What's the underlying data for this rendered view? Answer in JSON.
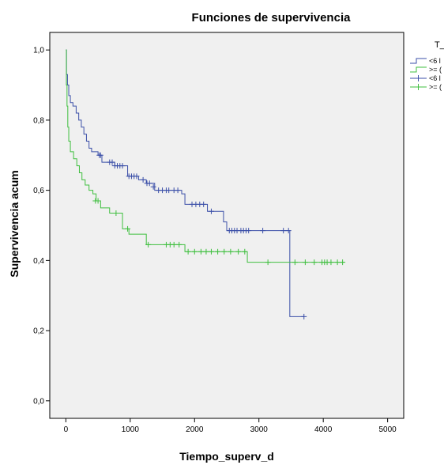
{
  "chart_data": {
    "type": "line",
    "title": "Funciones de supervivencia",
    "xlabel": "Tiempo_superv_d",
    "ylabel": "Supervivencia acum",
    "xlim": [
      -250,
      5250
    ],
    "ylim": [
      -0.05,
      1.05
    ],
    "xticks": [
      0,
      1000,
      2000,
      3000,
      4000,
      5000
    ],
    "xtick_labels": [
      "0",
      "1000",
      "2000",
      "3000",
      "4000",
      "5000"
    ],
    "yticks": [
      0.0,
      0.2,
      0.4,
      0.6,
      0.8,
      1.0
    ],
    "ytick_labels": [
      "0,0",
      "0,2",
      "0,4",
      "0,6",
      "0,8",
      "1,0"
    ],
    "grid": false,
    "background": "#f0f0f0",
    "legend": {
      "title": "T_",
      "position": "right",
      "entries": [
        {
          "label": "<6 l",
          "color": "#3b4fa8",
          "marker": "step"
        },
        {
          "label": ">= (",
          "color": "#3fbf3f",
          "marker": "step"
        },
        {
          "label": "<6 l",
          "color": "#3b4fa8",
          "marker": "plus"
        },
        {
          "label": ">= (",
          "color": "#3fbf3f",
          "marker": "plus"
        }
      ]
    },
    "series": [
      {
        "color": "#3b4fa8",
        "steps": [
          [
            0,
            1.0
          ],
          [
            10,
            0.93
          ],
          [
            25,
            0.9
          ],
          [
            45,
            0.87
          ],
          [
            70,
            0.85
          ],
          [
            110,
            0.84
          ],
          [
            160,
            0.82
          ],
          [
            200,
            0.8
          ],
          [
            240,
            0.78
          ],
          [
            280,
            0.76
          ],
          [
            320,
            0.74
          ],
          [
            360,
            0.72
          ],
          [
            400,
            0.71
          ],
          [
            500,
            0.7
          ],
          [
            560,
            0.68
          ],
          [
            760,
            0.67
          ],
          [
            960,
            0.64
          ],
          [
            1130,
            0.63
          ],
          [
            1250,
            0.62
          ],
          [
            1380,
            0.6
          ],
          [
            1800,
            0.59
          ],
          [
            1850,
            0.56
          ],
          [
            2200,
            0.54
          ],
          [
            2450,
            0.51
          ],
          [
            2500,
            0.485
          ],
          [
            3480,
            0.24
          ],
          [
            3700,
            0.24
          ]
        ],
        "censored": [
          [
            520,
            0.7
          ],
          [
            540,
            0.7
          ],
          [
            680,
            0.68
          ],
          [
            720,
            0.68
          ],
          [
            760,
            0.67
          ],
          [
            800,
            0.67
          ],
          [
            840,
            0.67
          ],
          [
            880,
            0.67
          ],
          [
            980,
            0.64
          ],
          [
            1020,
            0.64
          ],
          [
            1060,
            0.64
          ],
          [
            1100,
            0.64
          ],
          [
            1200,
            0.63
          ],
          [
            1260,
            0.62
          ],
          [
            1300,
            0.62
          ],
          [
            1360,
            0.61
          ],
          [
            1440,
            0.6
          ],
          [
            1500,
            0.6
          ],
          [
            1560,
            0.6
          ],
          [
            1600,
            0.6
          ],
          [
            1680,
            0.6
          ],
          [
            1740,
            0.6
          ],
          [
            1960,
            0.56
          ],
          [
            2020,
            0.56
          ],
          [
            2080,
            0.56
          ],
          [
            2140,
            0.56
          ],
          [
            2260,
            0.54
          ],
          [
            2540,
            0.485
          ],
          [
            2580,
            0.485
          ],
          [
            2620,
            0.485
          ],
          [
            2660,
            0.485
          ],
          [
            2720,
            0.485
          ],
          [
            2760,
            0.485
          ],
          [
            2800,
            0.485
          ],
          [
            2840,
            0.485
          ],
          [
            3060,
            0.485
          ],
          [
            3380,
            0.485
          ],
          [
            3460,
            0.485
          ],
          [
            3700,
            0.24
          ]
        ]
      },
      {
        "color": "#3fbf3f",
        "steps": [
          [
            0,
            1.0
          ],
          [
            8,
            0.9
          ],
          [
            18,
            0.84
          ],
          [
            30,
            0.78
          ],
          [
            45,
            0.74
          ],
          [
            70,
            0.71
          ],
          [
            120,
            0.69
          ],
          [
            170,
            0.67
          ],
          [
            210,
            0.65
          ],
          [
            250,
            0.63
          ],
          [
            300,
            0.615
          ],
          [
            360,
            0.6
          ],
          [
            420,
            0.59
          ],
          [
            470,
            0.57
          ],
          [
            540,
            0.55
          ],
          [
            680,
            0.535
          ],
          [
            880,
            0.49
          ],
          [
            980,
            0.475
          ],
          [
            1250,
            0.445
          ],
          [
            1850,
            0.425
          ],
          [
            2820,
            0.395
          ],
          [
            4330,
            0.395
          ]
        ],
        "censored": [
          [
            460,
            0.57
          ],
          [
            500,
            0.57
          ],
          [
            780,
            0.535
          ],
          [
            960,
            0.49
          ],
          [
            1280,
            0.445
          ],
          [
            1560,
            0.445
          ],
          [
            1620,
            0.445
          ],
          [
            1680,
            0.445
          ],
          [
            1760,
            0.445
          ],
          [
            1900,
            0.425
          ],
          [
            2000,
            0.425
          ],
          [
            2100,
            0.425
          ],
          [
            2180,
            0.425
          ],
          [
            2260,
            0.425
          ],
          [
            2360,
            0.425
          ],
          [
            2460,
            0.425
          ],
          [
            2560,
            0.425
          ],
          [
            2680,
            0.425
          ],
          [
            2780,
            0.425
          ],
          [
            3140,
            0.395
          ],
          [
            3560,
            0.395
          ],
          [
            3720,
            0.395
          ],
          [
            3860,
            0.395
          ],
          [
            3980,
            0.395
          ],
          [
            4020,
            0.395
          ],
          [
            4060,
            0.395
          ],
          [
            4120,
            0.395
          ],
          [
            4220,
            0.395
          ],
          [
            4300,
            0.395
          ]
        ]
      }
    ]
  }
}
